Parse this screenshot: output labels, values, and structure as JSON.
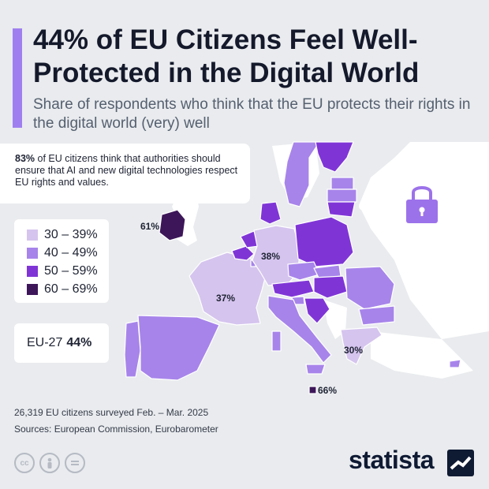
{
  "header": {
    "title": "44% of EU Citizens Feel Well-Protected in the Digital World",
    "subtitle": "Share of respondents who think that the EU protects their rights in the digital world (very) well"
  },
  "callout": {
    "highlight": "83%",
    "text": "of EU citizens think that authorities should ensure that AI and new digital technologies respect EU rights and values."
  },
  "legend": [
    {
      "label": "30 – 39%",
      "color": "#d5c4ee"
    },
    {
      "label": "40 – 49%",
      "color": "#a784ea"
    },
    {
      "label": "50 – 59%",
      "color": "#7f35d6"
    },
    {
      "label": "60 – 69%",
      "color": "#3d1659"
    }
  ],
  "eu_total": {
    "label": "EU-27",
    "value": "44%"
  },
  "map_labels": {
    "ireland": "61%",
    "germany": "38%",
    "france": "37%",
    "greece": "30%",
    "malta": "66%"
  },
  "chart_data": {
    "type": "choropleth",
    "unit": "%",
    "bins": [
      "30 – 39%",
      "40 – 49%",
      "50 – 59%",
      "60 – 69%"
    ],
    "labeled_values": [
      {
        "region": "Ireland",
        "value": 61
      },
      {
        "region": "Germany",
        "value": 38
      },
      {
        "region": "France",
        "value": 37
      },
      {
        "region": "Greece",
        "value": 30
      },
      {
        "region": "Malta",
        "value": 66
      }
    ],
    "eu27": 44
  },
  "footer": {
    "note": "26,319 EU citizens surveyed Feb. – Mar. 2025",
    "sources": "Sources: European Commission, Eurobarometer",
    "brand": "statista",
    "icons": [
      "cc-icon",
      "person-icon",
      "equals-icon"
    ]
  },
  "colors": {
    "accent": "#9f7ff0",
    "shield": "#9c72ea",
    "land_non_eu": "#ffffff",
    "sea": "#e9ebee"
  }
}
